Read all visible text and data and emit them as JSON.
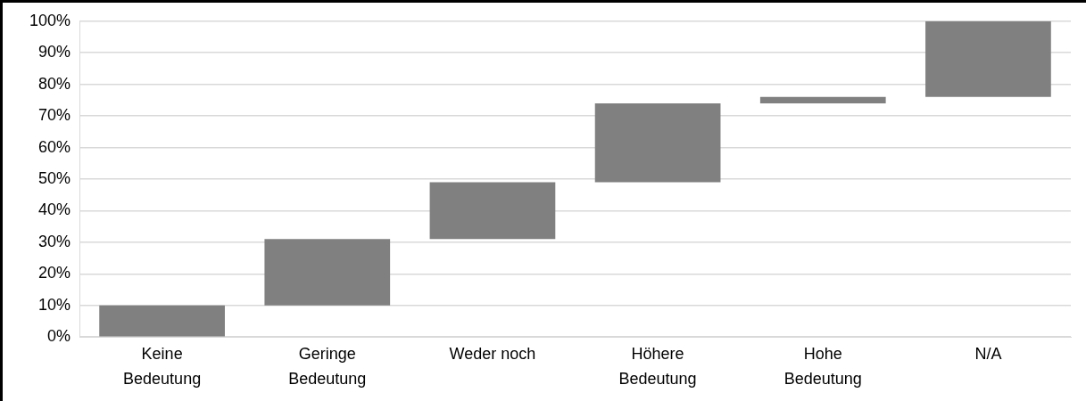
{
  "chart_data": {
    "type": "bar",
    "categories": [
      "Keine Bedeutung",
      "Geringe Bedeutung",
      "Weder noch",
      "Höhere Bedeutung",
      "Hohe Bedeutung",
      "N/A"
    ],
    "values": [
      10,
      21,
      18,
      25,
      2,
      24
    ],
    "base": [
      0,
      10,
      31,
      49,
      74,
      76
    ],
    "color": "#808080",
    "ylim": [
      0,
      100
    ],
    "yticks": [
      {
        "value": 0,
        "label": "0%"
      },
      {
        "value": 10,
        "label": "10%"
      },
      {
        "value": 20,
        "label": "20%"
      },
      {
        "value": 30,
        "label": "30%"
      },
      {
        "value": 40,
        "label": "40%"
      },
      {
        "value": 50,
        "label": "50%"
      },
      {
        "value": 60,
        "label": "60%"
      },
      {
        "value": 70,
        "label": "70%"
      },
      {
        "value": 80,
        "label": "80%"
      },
      {
        "value": 90,
        "label": "90%"
      },
      {
        "value": 100,
        "label": "100%"
      }
    ],
    "grid": "y"
  }
}
